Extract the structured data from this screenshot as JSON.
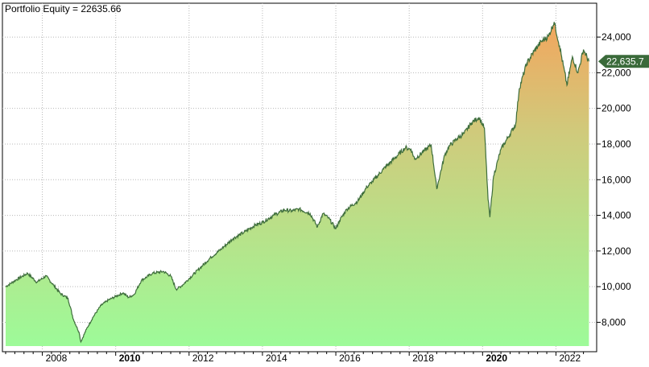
{
  "chart_data": {
    "type": "area",
    "title": "Portfolio Equity = 22635.66",
    "last_value_label": "22,635.7",
    "xlabel": "",
    "ylabel": "",
    "x_ticks": [
      {
        "year": 2008,
        "label": "2008",
        "bold": false
      },
      {
        "year": 2010,
        "label": "2010",
        "bold": true
      },
      {
        "year": 2012,
        "label": "2012",
        "bold": false
      },
      {
        "year": 2014,
        "label": "2014",
        "bold": false
      },
      {
        "year": 2016,
        "label": "2016",
        "bold": false
      },
      {
        "year": 2018,
        "label": "2018",
        "bold": false
      },
      {
        "year": 2020,
        "label": "2020",
        "bold": true
      },
      {
        "year": 2022,
        "label": "2022",
        "bold": false
      }
    ],
    "y_ticks": [
      {
        "value": 8000,
        "label": "8,000"
      },
      {
        "value": 10000,
        "label": "10,000"
      },
      {
        "value": 12000,
        "label": "12,000"
      },
      {
        "value": 14000,
        "label": "14,000"
      },
      {
        "value": 16000,
        "label": "16,000"
      },
      {
        "value": 18000,
        "label": "18,000"
      },
      {
        "value": 20000,
        "label": "20,000"
      },
      {
        "value": 22000,
        "label": "22,000"
      },
      {
        "value": 24000,
        "label": "24,000"
      }
    ],
    "xlim": [
      2007.0,
      2023.0
    ],
    "ylim": [
      6350,
      25900
    ],
    "grid": true,
    "series": [
      {
        "x": [
          2007.0,
          2007.3,
          2007.6,
          2007.85,
          2008.1,
          2008.3,
          2008.5,
          2008.7,
          2008.85,
          2009.0,
          2009.05,
          2009.2,
          2009.4,
          2009.6,
          2009.8,
          2010.0,
          2010.2,
          2010.35,
          2010.5,
          2010.7,
          2011.0,
          2011.3,
          2011.5,
          2011.65,
          2011.8,
          2012.0,
          2012.3,
          2012.6,
          2012.9,
          2013.2,
          2013.5,
          2013.8,
          2014.0,
          2014.3,
          2014.6,
          2014.8,
          2015.0,
          2015.3,
          2015.5,
          2015.65,
          2015.8,
          2016.0,
          2016.1,
          2016.3,
          2016.6,
          2016.85,
          2017.0,
          2017.3,
          2017.6,
          2017.9,
          2018.05,
          2018.15,
          2018.4,
          2018.6,
          2018.75,
          2018.97,
          2019.1,
          2019.3,
          2019.5,
          2019.7,
          2019.9,
          2020.05,
          2020.15,
          2020.2,
          2020.3,
          2020.5,
          2020.7,
          2020.9,
          2021.0,
          2021.2,
          2021.4,
          2021.6,
          2021.8,
          2021.95,
          2022.1,
          2022.3,
          2022.45,
          2022.6,
          2022.75,
          2022.9
        ],
        "y": [
          10000,
          10400,
          10750,
          10250,
          10600,
          10100,
          9600,
          9350,
          8150,
          7450,
          6900,
          7600,
          8350,
          8950,
          9250,
          9450,
          9650,
          9400,
          9550,
          10350,
          10750,
          10850,
          10600,
          9850,
          10050,
          10450,
          11050,
          11650,
          12150,
          12700,
          13050,
          13450,
          13600,
          14000,
          14300,
          14250,
          14350,
          14100,
          13350,
          14100,
          13850,
          13250,
          13700,
          14350,
          14800,
          15600,
          15900,
          16600,
          17200,
          17800,
          17700,
          17150,
          17600,
          17950,
          15500,
          17400,
          17900,
          18300,
          18600,
          19200,
          19500,
          18900,
          14900,
          13900,
          16200,
          17700,
          18400,
          19100,
          21100,
          22500,
          23200,
          23750,
          24050,
          24850,
          23500,
          21300,
          22900,
          22000,
          23300,
          22636
        ]
      }
    ]
  }
}
